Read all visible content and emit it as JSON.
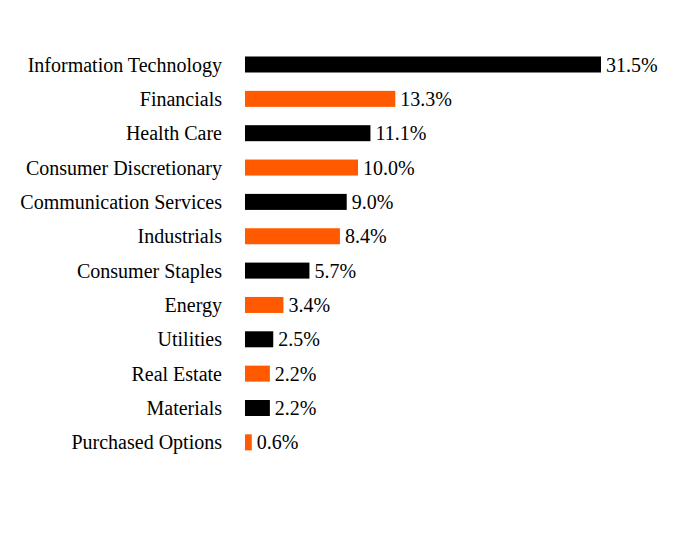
{
  "chart_data": {
    "type": "bar",
    "orientation": "horizontal",
    "categories": [
      "Information Technology",
      "Financials",
      "Health Care",
      "Consumer Discretionary",
      "Communication Services",
      "Industrials",
      "Consumer Staples",
      "Energy",
      "Utilities",
      "Real Estate",
      "Materials",
      "Purchased Options"
    ],
    "values": [
      31.5,
      13.3,
      11.1,
      10.0,
      9.0,
      8.4,
      5.7,
      3.4,
      2.5,
      2.2,
      2.2,
      0.6
    ],
    "value_labels": [
      "31.5%",
      "13.3%",
      "11.1%",
      "10.0%",
      "9.0%",
      "8.4%",
      "5.7%",
      "3.4%",
      "2.5%",
      "2.2%",
      "2.2%",
      "0.6%"
    ],
    "colors": [
      "#000000",
      "#ff5a00",
      "#000000",
      "#ff5a00",
      "#000000",
      "#ff5a00",
      "#000000",
      "#ff5a00",
      "#000000",
      "#ff5a00",
      "#000000",
      "#ff5a00"
    ],
    "xlim": [
      0,
      31.5
    ],
    "data_labels": true,
    "tick_labels": "y",
    "grid": false
  }
}
